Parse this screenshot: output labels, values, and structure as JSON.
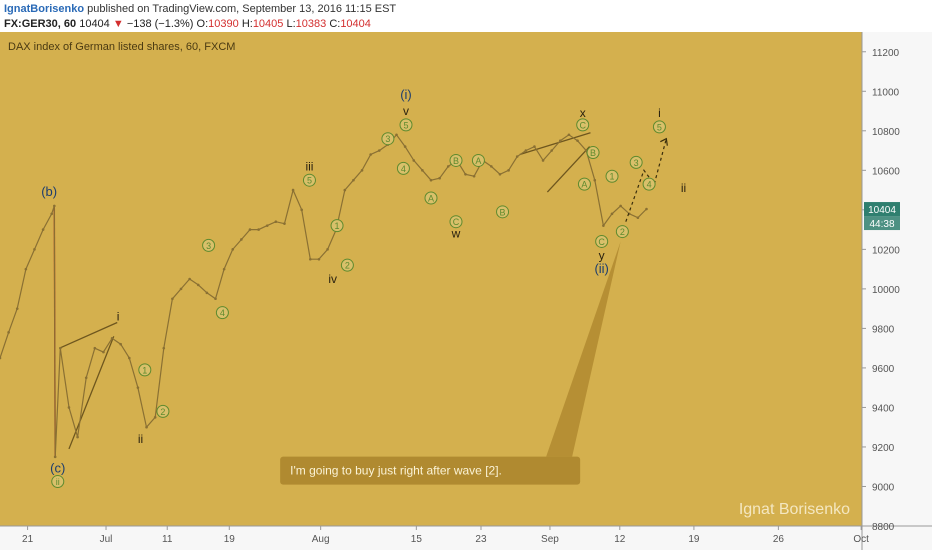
{
  "header": {
    "author": "IgnatBorisenko",
    "published": "published on TradingView.com, September 13, 2016 11:15 EST",
    "symbol": "FX:GER30, 60",
    "last": "10404",
    "change_arrow": "▼",
    "change": "−138 (−1.3%)",
    "o_label": "O:",
    "o": "10390",
    "h_label": "H:",
    "h": "10405",
    "l_label": "L:",
    "l": "10383",
    "c_label": "C:",
    "c": "10404"
  },
  "chart_data": {
    "type": "line",
    "title": "DAX index of German listed shares, 60, FXCM",
    "watermark": "Ignat Borisenko",
    "colors": {
      "background": "#d4b04e",
      "price": "#8a7033",
      "label_text": "#4a3a12",
      "wave_line": "#6e561e",
      "callout": "#b08a30",
      "price_tag": "#2f7f6f",
      "wave_circle": "#5e8a2e"
    },
    "ylim": [
      8800,
      11300
    ],
    "yticks": [
      8800,
      9000,
      9200,
      9400,
      9600,
      9800,
      10000,
      10200,
      10400,
      10600,
      10800,
      11000,
      11200
    ],
    "xlim": [
      0,
      100
    ],
    "xticks": [
      {
        "x": 3.2,
        "label": "21"
      },
      {
        "x": 12.3,
        "label": "Jul"
      },
      {
        "x": 19.4,
        "label": "11"
      },
      {
        "x": 26.6,
        "label": "19"
      },
      {
        "x": 37.2,
        "label": "Aug"
      },
      {
        "x": 48.3,
        "label": "15"
      },
      {
        "x": 55.8,
        "label": "23"
      },
      {
        "x": 63.8,
        "label": "Sep"
      },
      {
        "x": 71.9,
        "label": "12"
      },
      {
        "x": 80.5,
        "label": "19"
      },
      {
        "x": 90.3,
        "label": "26"
      },
      {
        "x": 99.9,
        "label": "Oct"
      }
    ],
    "price_tag": "10404",
    "countdown": "44:38",
    "series": [
      {
        "x": [
          0,
          1,
          2,
          3,
          4,
          5,
          6,
          6.3,
          6.4,
          7,
          8,
          9,
          10,
          11,
          12,
          13,
          14,
          15,
          16,
          17,
          18,
          19,
          20,
          21,
          22,
          23,
          24,
          25,
          26,
          27,
          28,
          29,
          30,
          31,
          32,
          33,
          34,
          35,
          36,
          37,
          38,
          39,
          40,
          41,
          42,
          43,
          44,
          45,
          46,
          47,
          48,
          49,
          50,
          51,
          52,
          53,
          54,
          55,
          56,
          57,
          58,
          59,
          60,
          61,
          62,
          63,
          64,
          65,
          66,
          67,
          68,
          69,
          70,
          71,
          72,
          73,
          74,
          75
        ],
        "values": [
          9650,
          9780,
          9900,
          10100,
          10200,
          10300,
          10380,
          10420,
          9150,
          9700,
          9400,
          9250,
          9550,
          9700,
          9680,
          9750,
          9720,
          9650,
          9500,
          9300,
          9350,
          9700,
          9950,
          10000,
          10050,
          10020,
          9980,
          9950,
          10100,
          10200,
          10250,
          10300,
          10300,
          10320,
          10340,
          10330,
          10500,
          10400,
          10150,
          10150,
          10200,
          10300,
          10500,
          10550,
          10600,
          10680,
          10700,
          10730,
          10780,
          10720,
          10650,
          10600,
          10550,
          10560,
          10620,
          10650,
          10580,
          10570,
          10650,
          10620,
          10580,
          10600,
          10670,
          10700,
          10720,
          10650,
          10700,
          10750,
          10780,
          10750,
          10700,
          10550,
          10320,
          10380,
          10420,
          10380,
          10360,
          10404
        ]
      }
    ],
    "annotations": [
      {
        "text": "(b)",
        "x": 5.7,
        "y": 10490
      },
      {
        "text": "(c)",
        "x": 6.7,
        "y": 9090
      },
      {
        "text": "ii",
        "x": 6.7,
        "y": 9025,
        "circled": true
      },
      {
        "text": "i",
        "x": 13.7,
        "y": 9860
      },
      {
        "text": "ii",
        "x": 16.3,
        "y": 9240
      },
      {
        "text": "1",
        "x": 16.8,
        "y": 9590,
        "circled": true
      },
      {
        "text": "2",
        "x": 18.9,
        "y": 9380,
        "circled": true
      },
      {
        "text": "3",
        "x": 24.2,
        "y": 10220,
        "circled": true
      },
      {
        "text": "4",
        "x": 25.8,
        "y": 9880,
        "circled": true
      },
      {
        "text": "iii",
        "x": 35.9,
        "y": 10620
      },
      {
        "text": "5",
        "x": 35.9,
        "y": 10550,
        "circled": true
      },
      {
        "text": "1",
        "x": 39.1,
        "y": 10320,
        "circled": true
      },
      {
        "text": "2",
        "x": 40.3,
        "y": 10120,
        "circled": true
      },
      {
        "text": "iv",
        "x": 38.6,
        "y": 10050
      },
      {
        "text": "(i)",
        "x": 47.1,
        "y": 10980
      },
      {
        "text": "v",
        "x": 47.1,
        "y": 10900
      },
      {
        "text": "5",
        "x": 47.1,
        "y": 10830,
        "circled": true
      },
      {
        "text": "3",
        "x": 45.0,
        "y": 10760,
        "circled": true
      },
      {
        "text": "4",
        "x": 46.8,
        "y": 10610,
        "circled": true
      },
      {
        "text": "A",
        "x": 50.0,
        "y": 10460,
        "circled": true
      },
      {
        "text": "B",
        "x": 52.9,
        "y": 10650,
        "circled": true
      },
      {
        "text": "A",
        "x": 55.5,
        "y": 10650,
        "circled": true
      },
      {
        "text": "C",
        "x": 52.9,
        "y": 10340,
        "circled": true
      },
      {
        "text": "w",
        "x": 52.9,
        "y": 10280
      },
      {
        "text": "B",
        "x": 58.3,
        "y": 10390,
        "circled": true
      },
      {
        "text": "x",
        "x": 67.6,
        "y": 10890
      },
      {
        "text": "C",
        "x": 67.6,
        "y": 10830,
        "circled": true
      },
      {
        "text": "B",
        "x": 68.8,
        "y": 10690,
        "circled": true
      },
      {
        "text": "A",
        "x": 67.8,
        "y": 10530,
        "circled": true
      },
      {
        "text": "1",
        "x": 71.0,
        "y": 10570,
        "circled": true
      },
      {
        "text": "C",
        "x": 69.8,
        "y": 10240,
        "circled": true
      },
      {
        "text": "2",
        "x": 72.2,
        "y": 10290,
        "circled": true
      },
      {
        "text": "y",
        "x": 69.8,
        "y": 10170
      },
      {
        "text": "(ii)",
        "x": 69.8,
        "y": 10100
      },
      {
        "text": "3",
        "x": 73.8,
        "y": 10640,
        "circled": true
      },
      {
        "text": "4",
        "x": 75.3,
        "y": 10530,
        "circled": true
      },
      {
        "text": "i",
        "x": 76.5,
        "y": 10890
      },
      {
        "text": "5",
        "x": 76.5,
        "y": 10820,
        "circled": true
      },
      {
        "text": "ii",
        "x": 79.3,
        "y": 10510
      }
    ],
    "callout": {
      "text": "I'm going to buy just right after wave [2].",
      "x": 32.5,
      "y": 9080,
      "pointer_x": 72.0,
      "pointer_y": 10240
    }
  }
}
